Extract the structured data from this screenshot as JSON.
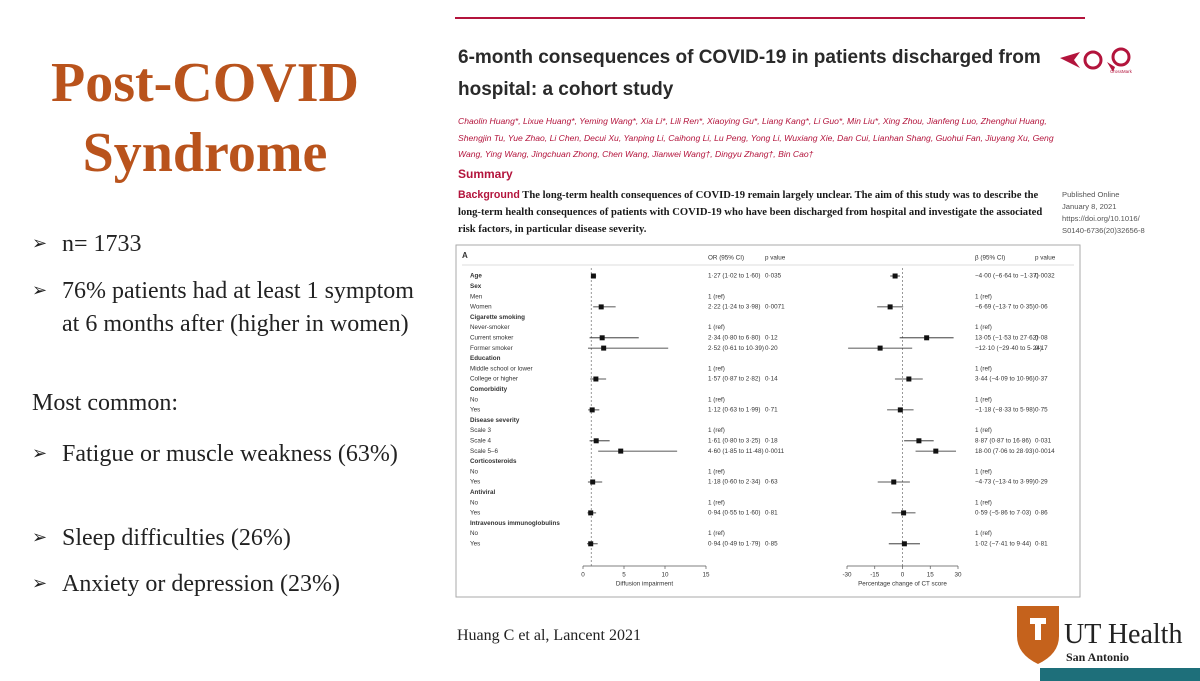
{
  "slide": {
    "title": "Post-COVID Syndrome",
    "bullets_top": [
      "n= 1733",
      "76% patients had at least 1 symptom at 6 months after (higher in women)"
    ],
    "subheading": "Most common:",
    "bullets_bottom": [
      "Fatigue or muscle weakness (63%)",
      "Sleep difficulties (26%)",
      "Anxiety or depression (23%)"
    ],
    "citation": "Huang C et al, Lancent 2021",
    "logo": {
      "name": "UT Health",
      "place": "San Antonio"
    }
  },
  "paper": {
    "title": "6-month consequences of COVID-19 in patients discharged from hospital: a cohort study",
    "crossmark": "CrossMark",
    "authors": "Chaolin Huang*, Lixue Huang*, Yeming Wang*, Xia Li*, Lili Ren*, Xiaoying Gu*, Liang Kang*, Li Guo*, Min Liu*, Xing Zhou, Jianfeng Luo, Zhenghui Huang, Shengjin Tu, Yue Zhao, Li Chen, Decui Xu, Yanping Li, Caihong Li, Lu Peng, Yong Li, Wuxiang Xie, Dan Cui, Lianhan Shang, Guohui Fan, Jiuyang Xu, Geng Wang, Ying Wang, Jingchuan Zhong, Chen Wang, Jianwei Wang†, Dingyu Zhang†, Bin Cao†",
    "summary_heading": "Summary",
    "background_label": "Background",
    "background_text": "The long-term health consequences of COVID-19 remain largely unclear. The aim of this study was to describe the long-term health consequences of patients with COVID-19 who have been discharged from hospital and investigate the associated risk factors, in particular disease severity.",
    "published": [
      "Published Online",
      "January 8, 2021",
      "https://doi.org/10.1016/",
      "S0140-6736(20)32656-8"
    ],
    "forest": {
      "panel": "A",
      "headers": [
        "OR (95% CI)",
        "p value",
        "β (95% CI)",
        "p value"
      ],
      "or_axis": {
        "title": "Diffusion impairment",
        "xlim": [
          0,
          15
        ],
        "xticks": [
          0,
          5,
          10,
          15
        ],
        "ref_line": 1
      },
      "beta_axis": {
        "title": "Percentage change of CT score",
        "xlim": [
          -30,
          30
        ],
        "xticks": [
          -30,
          -15,
          0,
          15,
          30
        ],
        "ref_line": 0
      },
      "rows": [
        {
          "label": "Age",
          "bold": true,
          "or": {
            "label": "1·27 (1·02 to 1·60)",
            "value": 1.27,
            "lo": 1.02,
            "hi": 1.6
          },
          "p": "0·035",
          "beta": {
            "label": "−4·00 (−6·64 to −1·37)",
            "value": -4.0,
            "lo": -6.64,
            "hi": -1.37
          },
          "p2": "0·0032"
        },
        {
          "label": "Sex",
          "bold": true
        },
        {
          "label": "Men",
          "or": "1 (ref)",
          "beta": "1 (ref)"
        },
        {
          "label": "Women",
          "or": {
            "label": "2·22 (1·24 to 3·98)",
            "value": 2.22,
            "lo": 1.24,
            "hi": 3.98
          },
          "p": "0·0071",
          "beta": {
            "label": "−6·69 (−13·7 to 0·35)",
            "value": -6.69,
            "lo": -13.7,
            "hi": 0.35
          },
          "p2": "0·06"
        },
        {
          "label": "Cigarette smoking",
          "bold": true
        },
        {
          "label": "Never-smoker",
          "or": "1 (ref)",
          "beta": "1 (ref)"
        },
        {
          "label": "Current smoker",
          "or": {
            "label": "2·34 (0·80 to 6·80)",
            "value": 2.34,
            "lo": 0.8,
            "hi": 6.8
          },
          "p": "0·12",
          "beta": {
            "label": "13·05 (−1·53 to 27·62)",
            "value": 13.05,
            "lo": -1.53,
            "hi": 27.62
          },
          "p2": "0·08"
        },
        {
          "label": "Former smoker",
          "or": {
            "label": "2·52 (0·61 to 10·39)",
            "value": 2.52,
            "lo": 0.61,
            "hi": 10.39
          },
          "p": "0·20",
          "beta": {
            "label": "−12·10 (−29·40 to 5·24)",
            "value": -12.1,
            "lo": -29.4,
            "hi": 5.24
          },
          "p2": "0·17"
        },
        {
          "label": "Education",
          "bold": true
        },
        {
          "label": "Middle school or lower",
          "or": "1 (ref)",
          "beta": "1 (ref)"
        },
        {
          "label": "College or higher",
          "or": {
            "label": "1·57 (0·87 to 2·82)",
            "value": 1.57,
            "lo": 0.87,
            "hi": 2.82
          },
          "p": "0·14",
          "beta": {
            "label": "3·44 (−4·09 to 10·96)",
            "value": 3.44,
            "lo": -4.09,
            "hi": 10.96
          },
          "p2": "0·37"
        },
        {
          "label": "Comorbidity",
          "bold": true
        },
        {
          "label": "No",
          "or": "1 (ref)",
          "beta": "1 (ref)"
        },
        {
          "label": "Yes",
          "or": {
            "label": "1·12 (0·63 to 1·99)",
            "value": 1.12,
            "lo": 0.63,
            "hi": 1.99
          },
          "p": "0·71",
          "beta": {
            "label": "−1·18 (−8·33 to 5·98)",
            "value": -1.18,
            "lo": -8.33,
            "hi": 5.98
          },
          "p2": "0·75"
        },
        {
          "label": "Disease severity",
          "bold": true
        },
        {
          "label": "Scale 3",
          "or": "1 (ref)",
          "beta": "1 (ref)"
        },
        {
          "label": "Scale 4",
          "or": {
            "label": "1·61 (0·80 to 3·25)",
            "value": 1.61,
            "lo": 0.8,
            "hi": 3.25
          },
          "p": "0·18",
          "beta": {
            "label": "8·87 (0·87 to 16·86)",
            "value": 8.87,
            "lo": 0.87,
            "hi": 16.86
          },
          "p2": "0·031"
        },
        {
          "label": "Scale 5–6",
          "or": {
            "label": "4·60 (1·85 to 11·48)",
            "value": 4.6,
            "lo": 1.85,
            "hi": 11.48
          },
          "p": "0·0011",
          "beta": {
            "label": "18·00 (7·06 to 28·93)",
            "value": 18.0,
            "lo": 7.06,
            "hi": 28.93
          },
          "p2": "0·0014"
        },
        {
          "label": "Corticosteroids",
          "bold": true
        },
        {
          "label": "No",
          "or": "1 (ref)",
          "beta": "1 (ref)"
        },
        {
          "label": "Yes",
          "or": {
            "label": "1·18 (0·60 to 2·34)",
            "value": 1.18,
            "lo": 0.6,
            "hi": 2.34
          },
          "p": "0·63",
          "beta": {
            "label": "−4·73 (−13·4 to 3·99)",
            "value": -4.73,
            "lo": -13.4,
            "hi": 3.99
          },
          "p2": "0·29"
        },
        {
          "label": "Antiviral",
          "bold": true
        },
        {
          "label": "No",
          "or": "1 (ref)",
          "beta": "1 (ref)"
        },
        {
          "label": "Yes",
          "or": {
            "label": "0·94 (0·55 to 1·60)",
            "value": 0.94,
            "lo": 0.55,
            "hi": 1.6
          },
          "p": "0·81",
          "beta": {
            "label": "0·59 (−5·86 to 7·03)",
            "value": 0.59,
            "lo": -5.86,
            "hi": 7.03
          },
          "p2": "0·86"
        },
        {
          "label": "Intravenous immunoglobulins",
          "bold": true
        },
        {
          "label": "No",
          "or": "1 (ref)",
          "beta": "1 (ref)"
        },
        {
          "label": "Yes",
          "or": {
            "label": "0·94 (0·49 to 1·79)",
            "value": 0.94,
            "lo": 0.49,
            "hi": 1.79
          },
          "p": "0·85",
          "beta": {
            "label": "1·02 (−7·41 to 9·44)",
            "value": 1.02,
            "lo": -7.41,
            "hi": 9.44
          },
          "p2": "0·81"
        }
      ]
    }
  }
}
